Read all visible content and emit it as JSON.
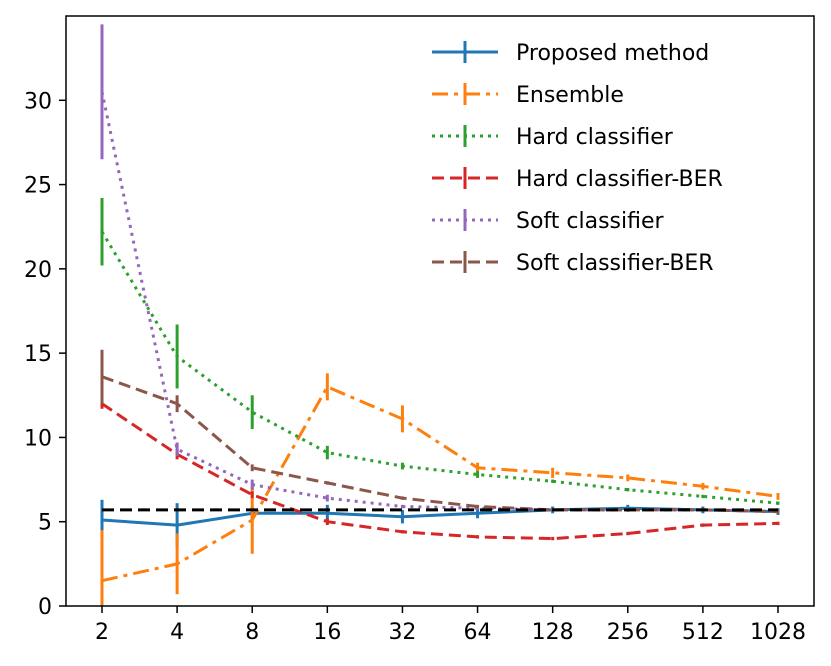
{
  "chart_data": {
    "type": "line",
    "title": "",
    "xlabel": "",
    "ylabel": "",
    "x_scale": "log2",
    "categories": [
      "2",
      "4",
      "8",
      "16",
      "32",
      "64",
      "128",
      "256",
      "512",
      "1028"
    ],
    "x": [
      2,
      4,
      8,
      16,
      32,
      64,
      128,
      256,
      512,
      1028
    ],
    "ylim": [
      0,
      35
    ],
    "yticks": [
      "0",
      "5",
      "10",
      "15",
      "20",
      "25",
      "30"
    ],
    "grid": false,
    "legend_position": "top-right",
    "reference_line": {
      "y": 5.7,
      "color": "#000000",
      "style": "dashed"
    },
    "series": [
      {
        "name": "Proposed method",
        "color": "#1f77b4",
        "style": "solid",
        "values": [
          5.1,
          4.8,
          5.5,
          5.5,
          5.3,
          5.5,
          5.7,
          5.8,
          5.7,
          5.6
        ],
        "errors": [
          1.2,
          1.3,
          0.4,
          0.5,
          0.4,
          0.3,
          0.2,
          0.2,
          0.2,
          0.2
        ]
      },
      {
        "name": "Ensemble",
        "color": "#ff7f0e",
        "style": "dashdot",
        "values": [
          1.5,
          2.5,
          5.1,
          13.0,
          11.1,
          8.2,
          7.9,
          7.6,
          7.1,
          6.5
        ],
        "errors": [
          3.0,
          1.8,
          2.0,
          0.8,
          0.8,
          0.3,
          0.3,
          0.2,
          0.2,
          0.2
        ]
      },
      {
        "name": "Hard classifier",
        "color": "#2ca02c",
        "style": "dotted",
        "values": [
          22.2,
          14.8,
          11.5,
          9.1,
          8.3,
          7.8,
          7.4,
          6.9,
          6.5,
          6.1
        ],
        "errors": [
          2.0,
          1.9,
          1.0,
          0.4,
          0.2,
          0.2,
          0.1,
          0.1,
          0.1,
          0.1
        ]
      },
      {
        "name": "Hard classifier-BER",
        "color": "#d62728",
        "style": "dashed",
        "values": [
          12.0,
          9.0,
          6.6,
          5.0,
          4.4,
          4.1,
          4.0,
          4.3,
          4.8,
          4.9
        ],
        "errors": [
          0.3,
          0.3,
          0.2,
          0.2,
          0.1,
          0.1,
          0.1,
          0.1,
          0.1,
          0.1
        ]
      },
      {
        "name": "Soft classifier",
        "color": "#9467bd",
        "style": "dotted",
        "values": [
          30.5,
          9.3,
          7.2,
          6.4,
          5.9,
          5.8,
          5.7,
          5.7,
          5.7,
          5.6
        ],
        "errors": [
          4.0,
          0.4,
          0.3,
          0.2,
          0.1,
          0.1,
          0.1,
          0.1,
          0.1,
          0.1
        ]
      },
      {
        "name": "Soft classifier-BER",
        "color": "#8c564b",
        "style": "dashed",
        "values": [
          13.6,
          12.0,
          8.2,
          7.3,
          6.4,
          5.9,
          5.7,
          5.7,
          5.7,
          5.6
        ],
        "errors": [
          1.6,
          0.5,
          0.2,
          0.1,
          0.1,
          0.1,
          0.1,
          0.1,
          0.1,
          0.1
        ]
      }
    ]
  }
}
